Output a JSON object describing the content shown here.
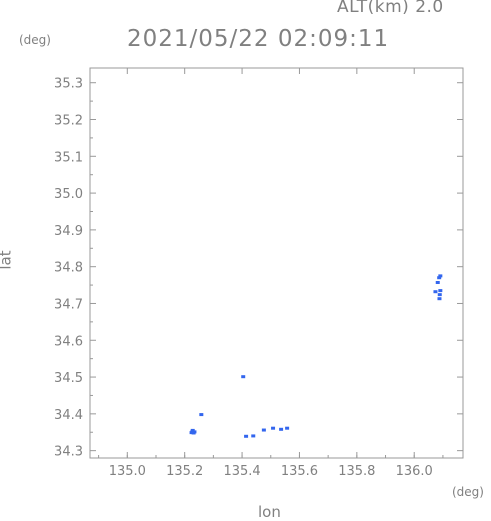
{
  "header": {
    "alt_label": "ALT(km) 2.0",
    "timestamp": "2021/05/22 02:09:11"
  },
  "chart_data": {
    "type": "scatter",
    "title": "2021/05/22 02:09:11",
    "xlabel": "lon",
    "ylabel": "lat",
    "x_unit": "(deg)",
    "y_unit": "(deg)",
    "xlim": [
      134.87,
      136.17
    ],
    "ylim": [
      34.28,
      35.34
    ],
    "x_ticks": [
      135.0,
      135.2,
      135.4,
      135.6,
      135.8,
      136.0
    ],
    "x_tick_labels": [
      "135.0",
      "135.2",
      "135.4",
      "135.6",
      "135.8",
      "136.0"
    ],
    "y_ticks": [
      34.3,
      34.4,
      34.5,
      34.6,
      34.7,
      34.8,
      34.9,
      35.0,
      35.1,
      35.2,
      35.3
    ],
    "y_tick_labels": [
      "34.3",
      "34.4",
      "34.5",
      "34.6",
      "34.7",
      "34.8",
      "34.9",
      "35.0",
      "35.1",
      "35.2",
      "35.3"
    ],
    "grid": false,
    "color": "#3366ee",
    "points": [
      {
        "x": 135.227,
        "y": 34.352
      },
      {
        "x": 135.231,
        "y": 34.348
      },
      {
        "x": 135.224,
        "y": 34.349
      },
      {
        "x": 135.228,
        "y": 34.355
      },
      {
        "x": 135.234,
        "y": 34.351
      },
      {
        "x": 135.258,
        "y": 34.398
      },
      {
        "x": 135.404,
        "y": 34.501
      },
      {
        "x": 135.414,
        "y": 34.339
      },
      {
        "x": 135.439,
        "y": 34.34
      },
      {
        "x": 135.476,
        "y": 34.356
      },
      {
        "x": 135.508,
        "y": 34.361
      },
      {
        "x": 135.536,
        "y": 34.358
      },
      {
        "x": 135.557,
        "y": 34.361
      },
      {
        "x": 136.091,
        "y": 34.775
      },
      {
        "x": 136.087,
        "y": 34.77
      },
      {
        "x": 136.082,
        "y": 34.757
      },
      {
        "x": 136.091,
        "y": 34.735
      },
      {
        "x": 136.089,
        "y": 34.724
      },
      {
        "x": 136.088,
        "y": 34.713
      },
      {
        "x": 136.074,
        "y": 34.732
      }
    ]
  }
}
